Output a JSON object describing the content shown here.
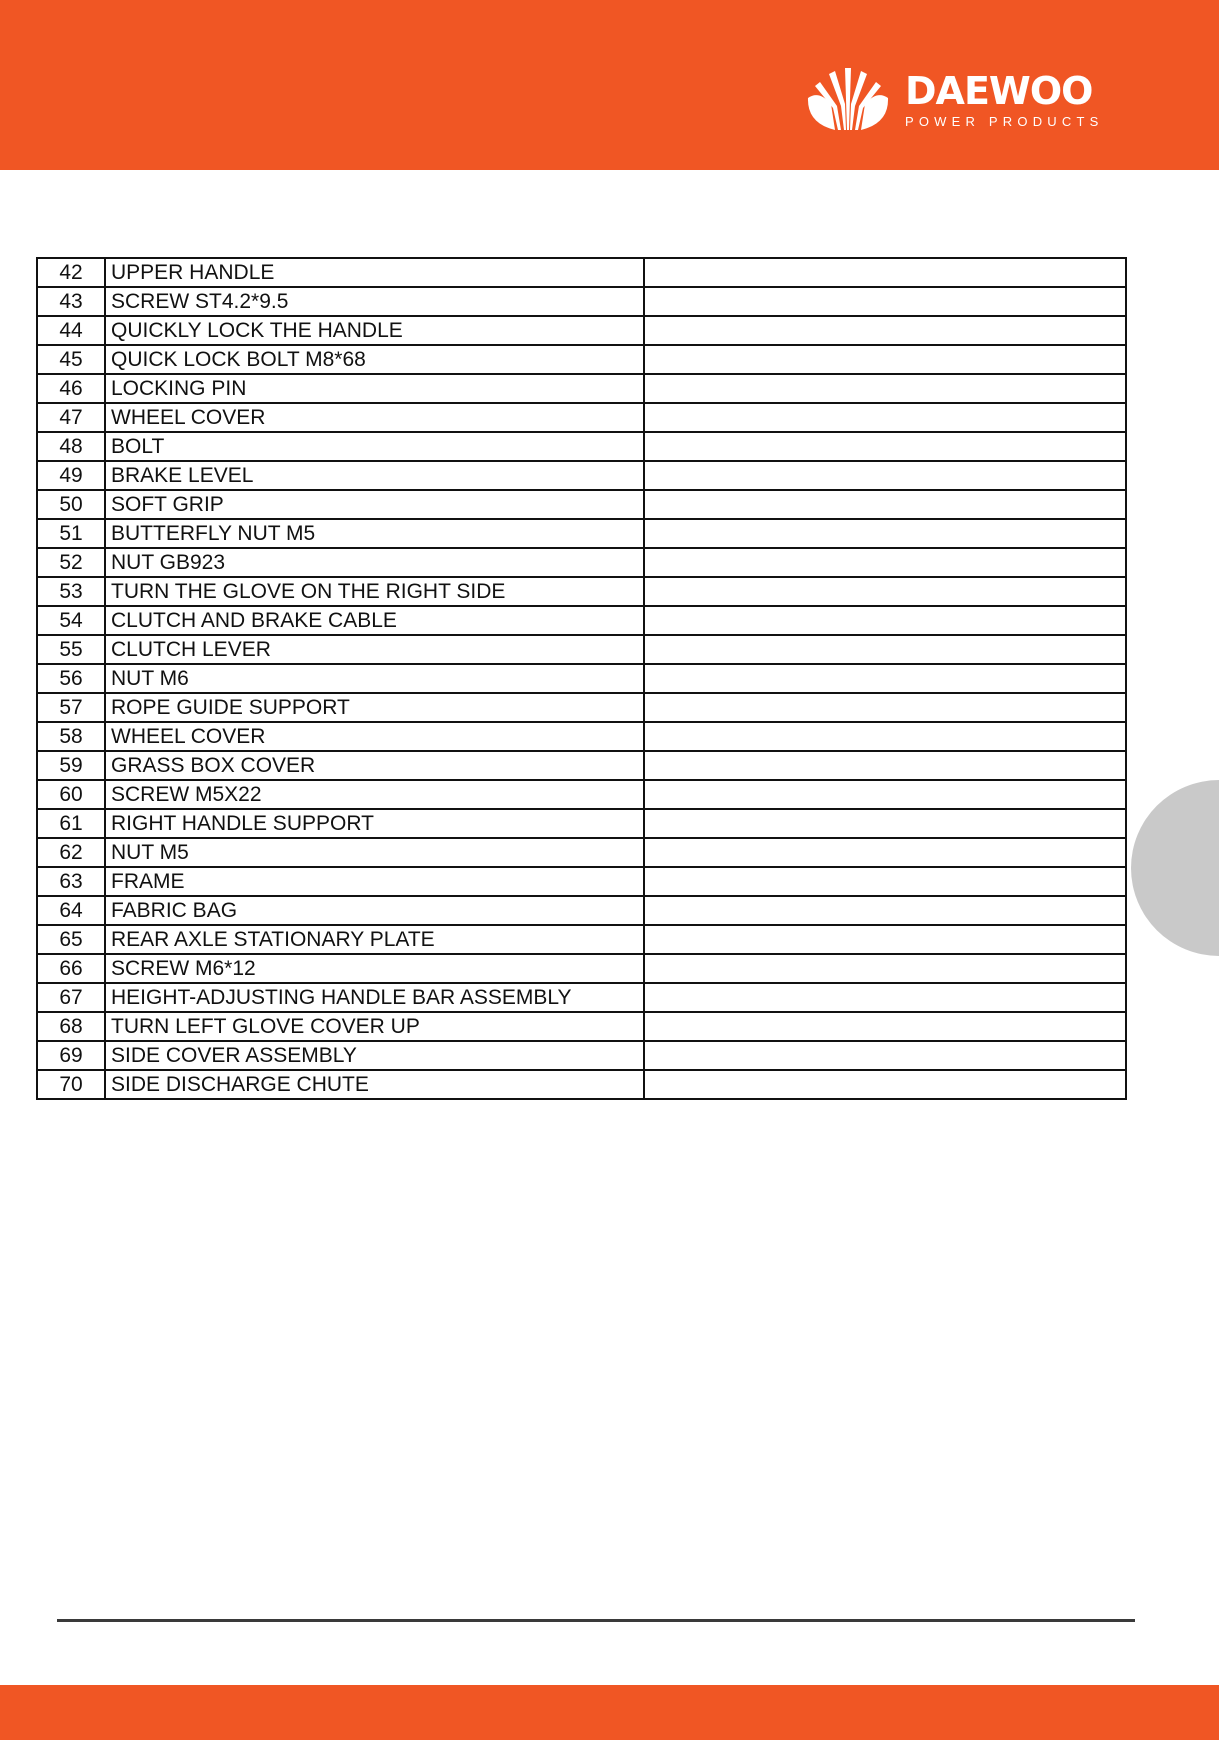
{
  "brand": {
    "name": "DAEWOO",
    "tagline": "POWER PRODUCTS",
    "color": "#f05624"
  },
  "parts": [
    {
      "no": "42",
      "name": "UPPER HANDLE"
    },
    {
      "no": "43",
      "name": "SCREW ST4.2*9.5"
    },
    {
      "no": "44",
      "name": "QUICKLY LOCK THE HANDLE"
    },
    {
      "no": "45",
      "name": "QUICK LOCK BOLT M8*68"
    },
    {
      "no": "46",
      "name": "LOCKING PIN"
    },
    {
      "no": "47",
      "name": "WHEEL COVER"
    },
    {
      "no": "48",
      "name": "BOLT"
    },
    {
      "no": "49",
      "name": "BRAKE LEVEL"
    },
    {
      "no": "50",
      "name": "SOFT GRIP"
    },
    {
      "no": "51",
      "name": "BUTTERFLY NUT M5"
    },
    {
      "no": "52",
      "name": "NUT GB923"
    },
    {
      "no": "53",
      "name": "TURN THE GLOVE ON THE RIGHT SIDE"
    },
    {
      "no": "54",
      "name": "CLUTCH AND BRAKE CABLE"
    },
    {
      "no": "55",
      "name": "CLUTCH LEVER"
    },
    {
      "no": "56",
      "name": "NUT M6"
    },
    {
      "no": "57",
      "name": "ROPE GUIDE SUPPORT"
    },
    {
      "no": "58",
      "name": "WHEEL COVER"
    },
    {
      "no": "59",
      "name": "GRASS BOX COVER"
    },
    {
      "no": "60",
      "name": "SCREW M5X22"
    },
    {
      "no": "61",
      "name": "RIGHT HANDLE SUPPORT"
    },
    {
      "no": "62",
      "name": "NUT M5"
    },
    {
      "no": "63",
      "name": "FRAME"
    },
    {
      "no": "64",
      "name": "FABRIC BAG"
    },
    {
      "no": "65",
      "name": "REAR AXLE STATIONARY PLATE"
    },
    {
      "no": "66",
      "name": "SCREW M6*12"
    },
    {
      "no": "67",
      "name": "HEIGHT-ADJUSTING HANDLE BAR ASSEMBLY"
    },
    {
      "no": "68",
      "name": "TURN LEFT GLOVE COVER UP"
    },
    {
      "no": "69",
      "name": "SIDE COVER ASSEMBLY"
    },
    {
      "no": "70",
      "name": "SIDE DISCHARGE CHUTE"
    }
  ]
}
